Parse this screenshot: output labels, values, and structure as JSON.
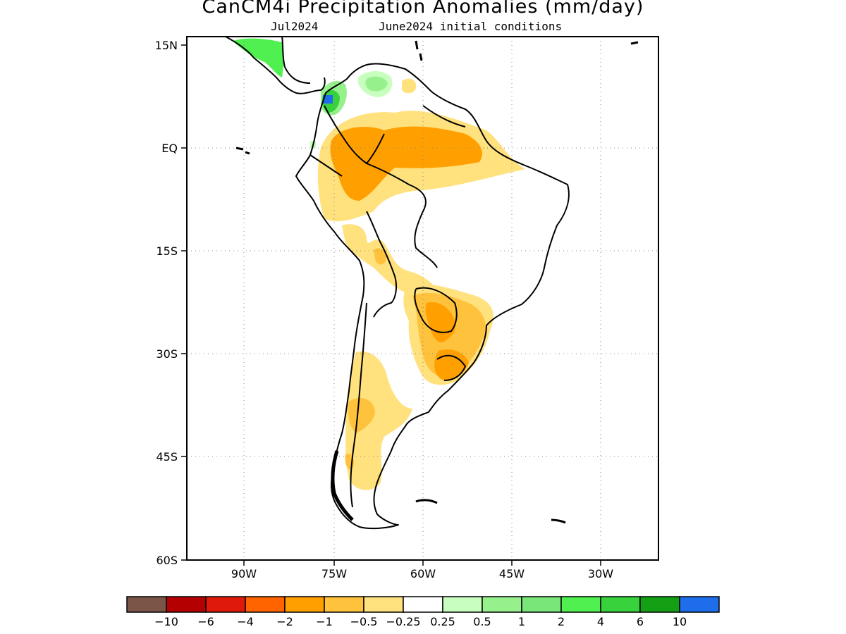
{
  "title": "CanCM4i Precipitation Anomalies (mm/day)",
  "valid_month": "Jul2024",
  "init_conditions": "June2024 initial conditions",
  "map": {
    "lon_labels": [
      "90W",
      "75W",
      "60W",
      "45W",
      "30W"
    ],
    "lat_labels": [
      "15N",
      "EQ",
      "15S",
      "30S",
      "45S",
      "60S"
    ]
  },
  "colorbar": {
    "colors": [
      "#7a5548",
      "#b40000",
      "#e01a0a",
      "#ff6400",
      "#ffa000",
      "#ffc23c",
      "#ffe17e",
      "#ffffff",
      "#c8ffbe",
      "#96f08c",
      "#78e678",
      "#50f050",
      "#37d23c",
      "#14a014",
      "#1e6eeb"
    ],
    "labels": [
      "−10",
      "−6",
      "−4",
      "−2",
      "−1",
      "−0.5",
      "−0.25",
      "0.25",
      "0.5",
      "1",
      "2",
      "4",
      "6",
      "10"
    ]
  },
  "colors": {
    "dry_light": "#ffe17e",
    "dry_mid": "#ffc23c",
    "dry_strong": "#ffa000",
    "wet_light": "#c8ffbe",
    "wet_mid": "#96f08c",
    "wet_strong": "#50f050",
    "wet_max": "#1e6eeb"
  }
}
